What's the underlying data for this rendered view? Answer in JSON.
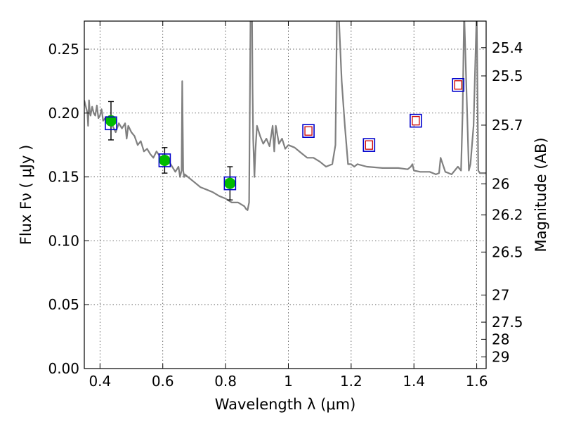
{
  "chart_data": {
    "type": "scatter",
    "title": "",
    "xlabel": "Wavelength  λ (μm)",
    "ylabel": "Flux  Fν  ( μJy )",
    "y2label": "Magnitude (AB)",
    "xlim": [
      0.35,
      1.63
    ],
    "ylim": [
      0.0,
      0.272
    ],
    "grid": true,
    "x_ticks": [
      {
        "value": 0.4,
        "label": "0.4"
      },
      {
        "value": 0.6,
        "label": "0.6"
      },
      {
        "value": 0.8,
        "label": "0.8"
      },
      {
        "value": 1.0,
        "label": "1"
      },
      {
        "value": 1.2,
        "label": "1.2"
      },
      {
        "value": 1.4,
        "label": "1.4"
      },
      {
        "value": 1.6,
        "label": "1.6"
      }
    ],
    "y_ticks": [
      {
        "value": 0.0,
        "label": "0.00"
      },
      {
        "value": 0.05,
        "label": "0.05"
      },
      {
        "value": 0.1,
        "label": "0.10"
      },
      {
        "value": 0.15,
        "label": "0.15"
      },
      {
        "value": 0.2,
        "label": "0.20"
      },
      {
        "value": 0.25,
        "label": "0.25"
      }
    ],
    "y2_ticks": [
      {
        "value": 25.4,
        "label": "25.4"
      },
      {
        "value": 25.5,
        "label": "25.5"
      },
      {
        "value": 25.7,
        "label": "25.7"
      },
      {
        "value": 26.0,
        "label": "26"
      },
      {
        "value": 26.2,
        "label": "26.2"
      },
      {
        "value": 26.5,
        "label": "26.5"
      },
      {
        "value": 27.0,
        "label": "27"
      },
      {
        "value": 27.5,
        "label": "27.5"
      },
      {
        "value": 28.0,
        "label": "28"
      },
      {
        "value": 29.0,
        "label": "29"
      }
    ],
    "colors": {
      "model": "#808080",
      "observed": "#00bb00",
      "model_box": "#0000cc",
      "prediction": "#cc0000",
      "errorbar": "#000000"
    },
    "model_spectrum": {
      "x": [
        0.35,
        0.355,
        0.36,
        0.362,
        0.365,
        0.368,
        0.37,
        0.375,
        0.38,
        0.385,
        0.39,
        0.393,
        0.395,
        0.4,
        0.405,
        0.41,
        0.42,
        0.43,
        0.44,
        0.45,
        0.46,
        0.47,
        0.48,
        0.485,
        0.49,
        0.5,
        0.51,
        0.52,
        0.53,
        0.54,
        0.55,
        0.56,
        0.57,
        0.58,
        0.6,
        0.62,
        0.64,
        0.65,
        0.655,
        0.66,
        0.662,
        0.665,
        0.668,
        0.67,
        0.68,
        0.7,
        0.72,
        0.74,
        0.76,
        0.78,
        0.8,
        0.82,
        0.84,
        0.86,
        0.865,
        0.87,
        0.875,
        0.88,
        0.884,
        0.886,
        0.888,
        0.89,
        0.892,
        0.895,
        0.9,
        0.91,
        0.92,
        0.93,
        0.94,
        0.95,
        0.955,
        0.96,
        0.97,
        0.98,
        0.99,
        1.0,
        1.02,
        1.04,
        1.06,
        1.08,
        1.1,
        1.12,
        1.14,
        1.15,
        1.155,
        1.16,
        1.17,
        1.18,
        1.19,
        1.2,
        1.21,
        1.22,
        1.25,
        1.3,
        1.35,
        1.38,
        1.39,
        1.395,
        1.4,
        1.42,
        1.45,
        1.47,
        1.48,
        1.485,
        1.5,
        1.52,
        1.54,
        1.55,
        1.555,
        1.56,
        1.575,
        1.58,
        1.59,
        1.6,
        1.605,
        1.61,
        1.63
      ],
      "y": [
        0.21,
        0.205,
        0.2,
        0.19,
        0.21,
        0.2,
        0.198,
        0.205,
        0.2,
        0.198,
        0.206,
        0.2,
        0.196,
        0.198,
        0.203,
        0.194,
        0.197,
        0.195,
        0.19,
        0.185,
        0.192,
        0.188,
        0.192,
        0.18,
        0.19,
        0.185,
        0.182,
        0.175,
        0.178,
        0.17,
        0.172,
        0.168,
        0.165,
        0.17,
        0.163,
        0.162,
        0.154,
        0.158,
        0.15,
        0.155,
        0.225,
        0.155,
        0.15,
        0.152,
        0.15,
        0.146,
        0.142,
        0.14,
        0.138,
        0.135,
        0.133,
        0.13,
        0.13,
        0.127,
        0.125,
        0.124,
        0.13,
        0.29,
        0.29,
        0.22,
        0.18,
        0.165,
        0.15,
        0.17,
        0.19,
        0.182,
        0.176,
        0.18,
        0.174,
        0.19,
        0.17,
        0.19,
        0.176,
        0.18,
        0.172,
        0.175,
        0.173,
        0.169,
        0.165,
        0.165,
        0.162,
        0.158,
        0.16,
        0.175,
        0.28,
        0.28,
        0.225,
        0.19,
        0.16,
        0.16,
        0.158,
        0.16,
        0.158,
        0.157,
        0.157,
        0.156,
        0.158,
        0.16,
        0.155,
        0.154,
        0.154,
        0.152,
        0.153,
        0.165,
        0.154,
        0.152,
        0.158,
        0.155,
        0.2,
        0.28,
        0.155,
        0.16,
        0.19,
        0.28,
        0.155,
        0.153,
        0.153
      ]
    },
    "observed_points": [
      {
        "x": 0.435,
        "y": 0.194,
        "err": 0.015
      },
      {
        "x": 0.606,
        "y": 0.163,
        "err": 0.01
      },
      {
        "x": 0.814,
        "y": 0.145,
        "err": 0.013
      }
    ],
    "model_boxes": [
      {
        "x": 0.435,
        "y": 0.192
      },
      {
        "x": 0.606,
        "y": 0.163
      },
      {
        "x": 0.814,
        "y": 0.145
      },
      {
        "x": 1.064,
        "y": 0.186
      },
      {
        "x": 1.257,
        "y": 0.175
      },
      {
        "x": 1.406,
        "y": 0.194
      },
      {
        "x": 1.541,
        "y": 0.222
      }
    ],
    "predicted_points": [
      {
        "x": 1.064,
        "y": 0.186
      },
      {
        "x": 1.257,
        "y": 0.175
      },
      {
        "x": 1.406,
        "y": 0.194
      },
      {
        "x": 1.541,
        "y": 0.222
      }
    ]
  }
}
